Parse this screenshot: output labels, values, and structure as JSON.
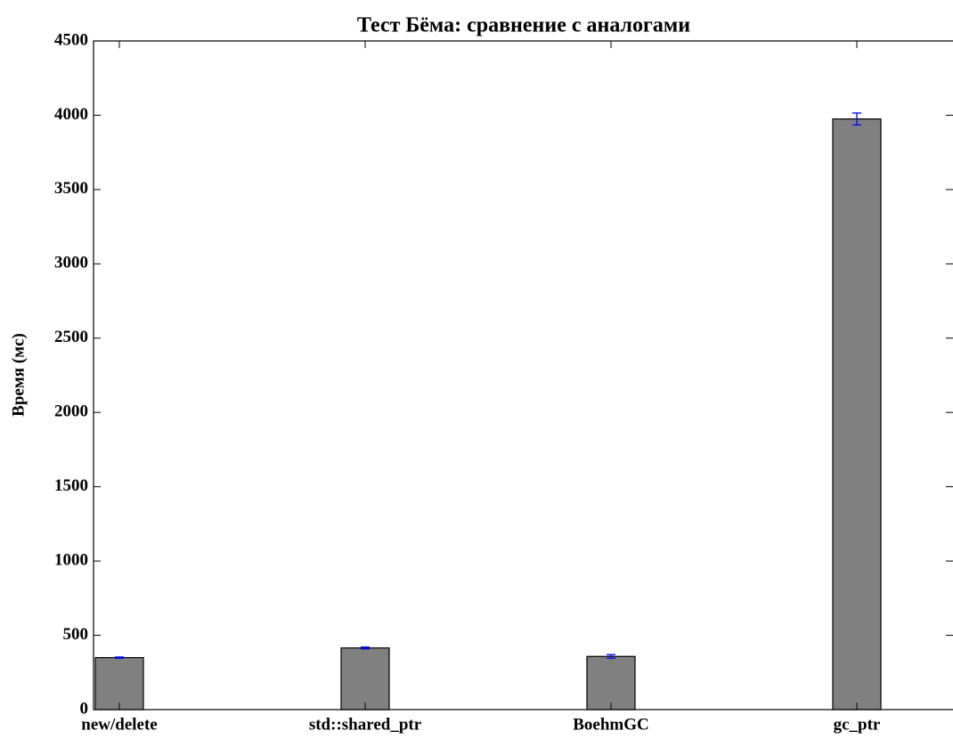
{
  "chart_data": {
    "type": "bar",
    "title": "Тест Бёма: сравнение с аналогами",
    "y_label": "Время (мс)",
    "categories": [
      "new/delete",
      "std::shared_ptr",
      "BoehmGC",
      "gc_ptr"
    ],
    "values": [
      350,
      415,
      358,
      3975
    ],
    "errors": [
      4,
      6,
      12,
      40
    ],
    "color": "#808080",
    "error_color": "#0000ff",
    "ylim": [
      0,
      4500
    ],
    "yticks": [
      0,
      500,
      1000,
      1500,
      2000,
      2500,
      3000,
      3500,
      4000,
      4500
    ]
  }
}
